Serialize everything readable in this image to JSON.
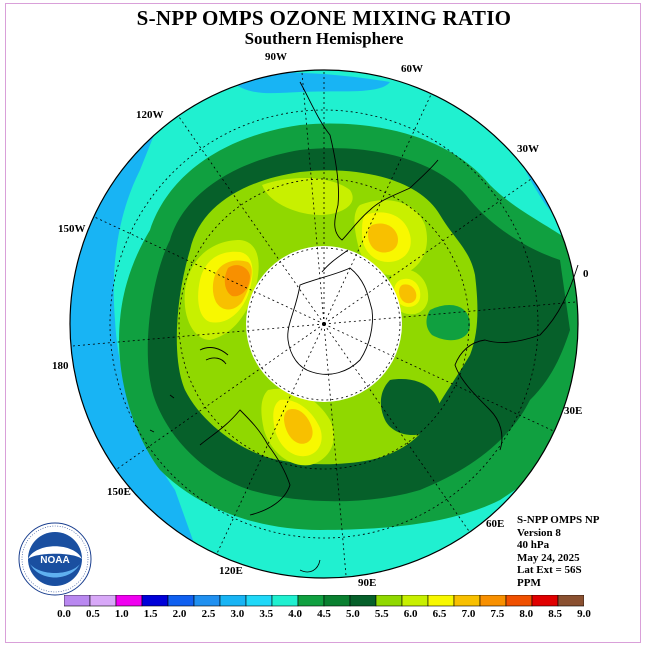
{
  "title": "S-NPP OMPS OZONE MIXING RATIO",
  "subtitle": "Southern Hemisphere",
  "longitude_labels": [
    "90W",
    "60W",
    "30W",
    "0",
    "30E",
    "60E",
    "90E",
    "120E",
    "150E",
    "180",
    "150W",
    "120W"
  ],
  "info": {
    "instrument": "S-NPP OMPS NP",
    "version": "Version 8",
    "level": "40 hPa",
    "date": "May 24, 2025",
    "lat_ext": "Lat Ext = 56S",
    "units": "PPM"
  },
  "logo": {
    "text": "NOAA",
    "icon": "noaa-logo"
  },
  "colorbar": {
    "ticks": [
      "0.0",
      "0.5",
      "1.0",
      "1.5",
      "2.0",
      "2.5",
      "3.0",
      "3.5",
      "4.0",
      "4.5",
      "5.0",
      "5.5",
      "6.0",
      "6.5",
      "7.0",
      "7.5",
      "8.0",
      "8.5",
      "9.0"
    ],
    "colors": [
      "#b988f0",
      "#d8a8f8",
      "#f000f0",
      "#0000d8",
      "#1060f0",
      "#2090f0",
      "#18b4f4",
      "#20d8f8",
      "#20f0d0",
      "#10a040",
      "#0a8030",
      "#06602a",
      "#90d800",
      "#c8f000",
      "#f8f800",
      "#f8c000",
      "#f89000",
      "#f05000",
      "#e00000",
      "#8a5030"
    ]
  }
}
